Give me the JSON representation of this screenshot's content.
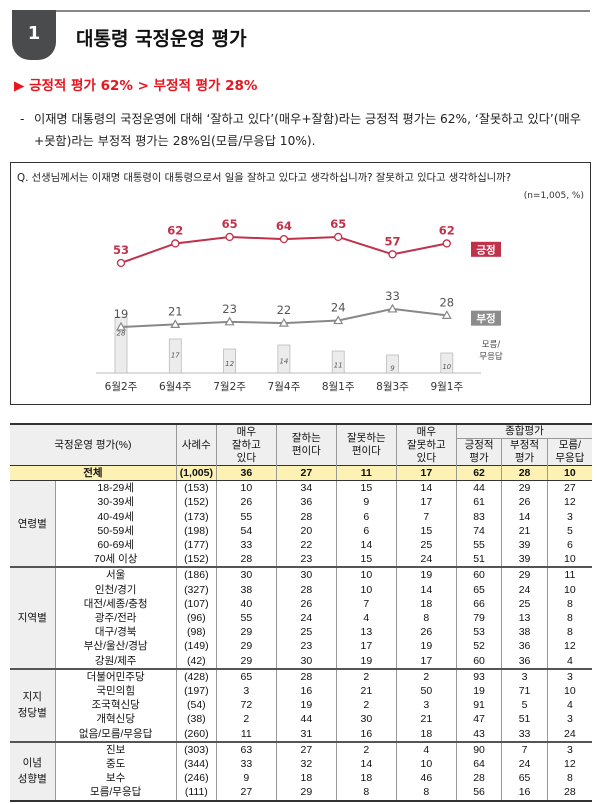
{
  "header": {
    "number": "1",
    "title": "대통령 국정운영 평가"
  },
  "headline": "▶ 긍정적 평가 62% > 부정적 평가 28%",
  "summary": {
    "dash": "-",
    "text": "이재명 대통령의 국정운영에 대해 ‘잘하고 있다’(매우+잘함)라는 긍정적 평가는 62%, ‘잘못하고 있다’(매우+못함)라는 부정적 평가는 28%임(모름/무응답 10%)."
  },
  "chart_data": {
    "type": "line",
    "question": "Q. 선생님께서는 이재명 대통령이 대통령으로서 일을 잘하고 있다고 생각하십니까? 잘못하고 있다고 생각하십니까?",
    "unit": "(n=1,005, %)",
    "categories": [
      "6월2주",
      "6월4주",
      "7월2주",
      "7월4주",
      "8월1주",
      "8월3주",
      "9월1주"
    ],
    "series": [
      {
        "name": "긍정",
        "type": "line",
        "color": "#c0314a",
        "values": [
          53,
          62,
          65,
          64,
          65,
          57,
          62
        ]
      },
      {
        "name": "부정",
        "type": "line",
        "color": "#8c8c8c",
        "values": [
          19,
          21,
          23,
          22,
          24,
          33,
          28
        ]
      },
      {
        "name": "모름/무응답",
        "type": "bar",
        "color": "#ececec",
        "values": [
          28,
          17,
          12,
          14,
          11,
          9,
          10
        ]
      }
    ]
  },
  "table": {
    "headers": {
      "category": "국정운영 평가(%)",
      "n": "사례수",
      "very_good": "매우\n잘하고\n있다",
      "good": "잘하는\n편이다",
      "bad": "잘못하는\n편이다",
      "very_bad": "매우\n잘못하고\n있다",
      "overall": "종합평가",
      "positive": "긍정적\n평가",
      "negative": "부정적\n평가",
      "dk": "모름/\n무응답"
    },
    "total": {
      "label": "전체",
      "n": "(1,005)",
      "values": [
        36,
        27,
        11,
        17,
        62,
        28,
        10
      ]
    },
    "groups": [
      {
        "label": "연령별",
        "rows": [
          [
            "18-29세",
            "(153)",
            10,
            34,
            15,
            14,
            44,
            29,
            27
          ],
          [
            "30-39세",
            "(152)",
            26,
            36,
            9,
            17,
            61,
            26,
            12
          ],
          [
            "40-49세",
            "(173)",
            55,
            28,
            6,
            7,
            83,
            14,
            3
          ],
          [
            "50-59세",
            "(198)",
            54,
            20,
            6,
            15,
            74,
            21,
            5
          ],
          [
            "60-69세",
            "(177)",
            33,
            22,
            14,
            25,
            55,
            39,
            6
          ],
          [
            "70세 이상",
            "(152)",
            28,
            23,
            15,
            24,
            51,
            39,
            10
          ]
        ]
      },
      {
        "label": "지역별",
        "rows": [
          [
            "서울",
            "(186)",
            30,
            30,
            10,
            19,
            60,
            29,
            11
          ],
          [
            "인천/경기",
            "(327)",
            38,
            28,
            10,
            14,
            65,
            24,
            10
          ],
          [
            "대전/세종/충청",
            "(107)",
            40,
            26,
            7,
            18,
            66,
            25,
            8
          ],
          [
            "광주/전라",
            "(96)",
            55,
            24,
            4,
            8,
            79,
            13,
            8
          ],
          [
            "대구/경북",
            "(98)",
            29,
            25,
            13,
            26,
            53,
            38,
            8
          ],
          [
            "부산/울산/경남",
            "(149)",
            29,
            23,
            17,
            19,
            52,
            36,
            12
          ],
          [
            "강원/제주",
            "(42)",
            29,
            30,
            19,
            17,
            60,
            36,
            4
          ]
        ]
      },
      {
        "label": "지지\n정당별",
        "rows": [
          [
            "더불어민주당",
            "(428)",
            65,
            28,
            2,
            2,
            93,
            3,
            3
          ],
          [
            "국민의힘",
            "(197)",
            3,
            16,
            21,
            50,
            19,
            71,
            10
          ],
          [
            "조국혁신당",
            "(54)",
            72,
            19,
            2,
            3,
            91,
            5,
            4
          ],
          [
            "개혁신당",
            "(38)",
            2,
            44,
            30,
            21,
            47,
            51,
            3
          ],
          [
            "없음/모름/무응답",
            "(260)",
            11,
            31,
            16,
            18,
            43,
            33,
            24
          ]
        ]
      },
      {
        "label": "이념\n성향별",
        "rows": [
          [
            "진보",
            "(303)",
            63,
            27,
            2,
            4,
            90,
            7,
            3
          ],
          [
            "중도",
            "(344)",
            33,
            32,
            14,
            10,
            64,
            24,
            12
          ],
          [
            "보수",
            "(246)",
            9,
            18,
            18,
            46,
            28,
            65,
            8
          ],
          [
            "모름/무응답",
            "(111)",
            27,
            29,
            8,
            8,
            56,
            16,
            28
          ]
        ]
      }
    ]
  }
}
